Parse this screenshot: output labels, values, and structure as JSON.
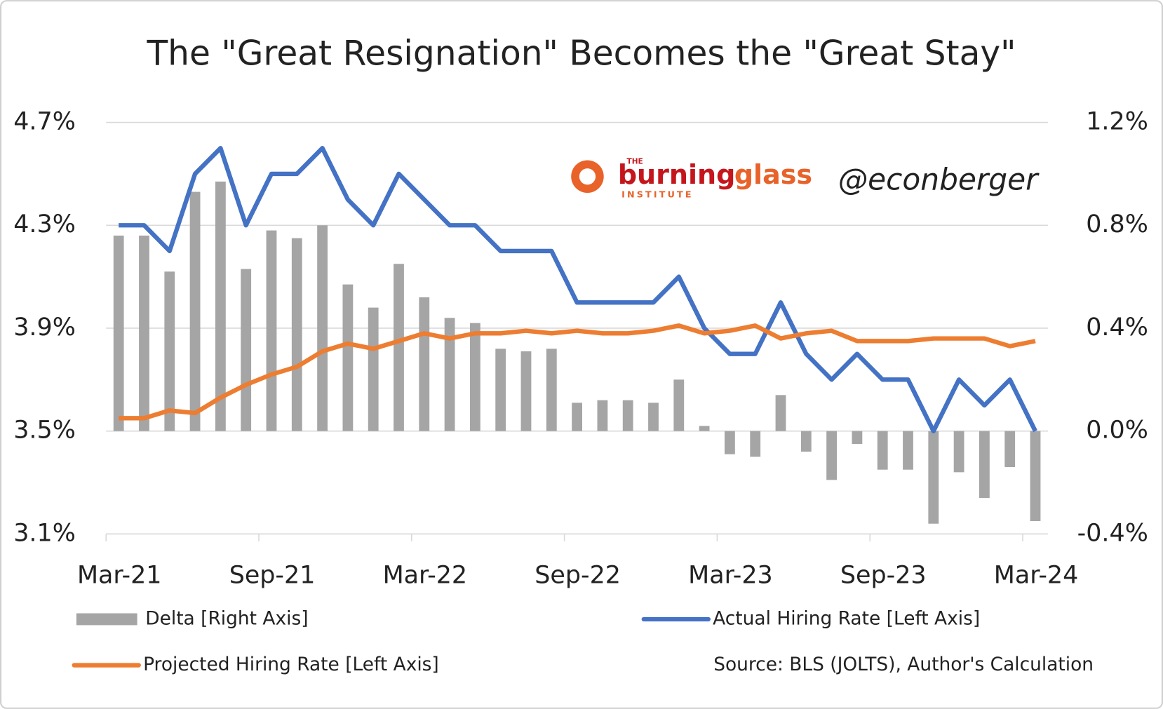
{
  "chart_data": {
    "type": "bar_line",
    "title": "The \"Great Resignation\" Becomes the \"Great Stay\"",
    "categories": [
      "Mar-21",
      null,
      null,
      null,
      null,
      null,
      "Sep-21",
      null,
      null,
      null,
      null,
      null,
      "Mar-22",
      null,
      null,
      null,
      null,
      null,
      "Sep-22",
      null,
      null,
      null,
      null,
      null,
      "Mar-23",
      null,
      null,
      null,
      null,
      null,
      "Sep-23",
      null,
      null,
      null,
      null,
      null,
      "Mar-24"
    ],
    "series": [
      {
        "name": "Delta [Right Axis]",
        "kind": "bar",
        "axis": "y2",
        "color": "#a5a5a5",
        "values": [
          0.76,
          0.76,
          0.62,
          0.93,
          0.97,
          0.63,
          0.78,
          0.75,
          0.8,
          0.57,
          0.48,
          0.65,
          0.52,
          0.44,
          0.42,
          0.32,
          0.31,
          0.32,
          0.11,
          0.12,
          0.12,
          0.11,
          0.2,
          0.02,
          -0.09,
          -0.1,
          0.14,
          -0.08,
          -0.19,
          -0.05,
          -0.15,
          -0.15,
          -0.36,
          -0.16,
          -0.26,
          -0.14,
          -0.35
        ]
      },
      {
        "name": "Actual Hiring Rate [Left Axis]",
        "kind": "line",
        "color": "#4472c4",
        "values": [
          4.3,
          4.3,
          4.2,
          4.5,
          4.6,
          4.3,
          4.5,
          4.5,
          4.6,
          4.4,
          4.3,
          4.5,
          4.4,
          4.3,
          4.3,
          4.2,
          4.2,
          4.2,
          4.0,
          4.0,
          4.0,
          4.0,
          4.1,
          3.9,
          3.8,
          3.8,
          4.0,
          3.8,
          3.7,
          3.8,
          3.7,
          3.7,
          3.5,
          3.7,
          3.6,
          3.7,
          3.5
        ]
      },
      {
        "name": "Projected Hiring Rate [Left Axis]",
        "kind": "line",
        "color": "#ed7d31",
        "values": [
          3.55,
          3.55,
          3.58,
          3.57,
          3.63,
          3.68,
          3.72,
          3.75,
          3.81,
          3.84,
          3.82,
          3.85,
          3.88,
          3.86,
          3.88,
          3.88,
          3.89,
          3.88,
          3.89,
          3.88,
          3.88,
          3.89,
          3.91,
          3.88,
          3.89,
          3.91,
          3.86,
          3.88,
          3.89,
          3.85,
          3.85,
          3.85,
          3.86,
          3.86,
          3.86,
          3.83,
          3.85
        ]
      }
    ],
    "ylim": [
      3.1,
      4.7
    ],
    "yticks": [
      {
        "value": 3.1,
        "label": "3.1%"
      },
      {
        "value": 3.5,
        "label": "3.5%"
      },
      {
        "value": 3.9,
        "label": "3.9%"
      },
      {
        "value": 4.3,
        "label": "4.3%"
      },
      {
        "value": 4.7,
        "label": "4.7%"
      }
    ],
    "y2lim": [
      -0.4,
      1.2
    ],
    "y2ticks": [
      {
        "value": -0.4,
        "label": "-0.4%"
      },
      {
        "value": 0,
        "label": "0.0%"
      },
      {
        "value": 0.4,
        "label": "0.4%"
      },
      {
        "value": 0.8,
        "label": "0.8%"
      },
      {
        "value": 1.2,
        "label": "1.2%"
      }
    ],
    "grid": true,
    "source": "Source: BLS (JOLTS), Author's Calculation",
    "logo": {
      "the": "THE",
      "burning": "burning",
      "glass": "glass",
      "institute": "INSTITUTE"
    },
    "handle": "@econberger"
  }
}
